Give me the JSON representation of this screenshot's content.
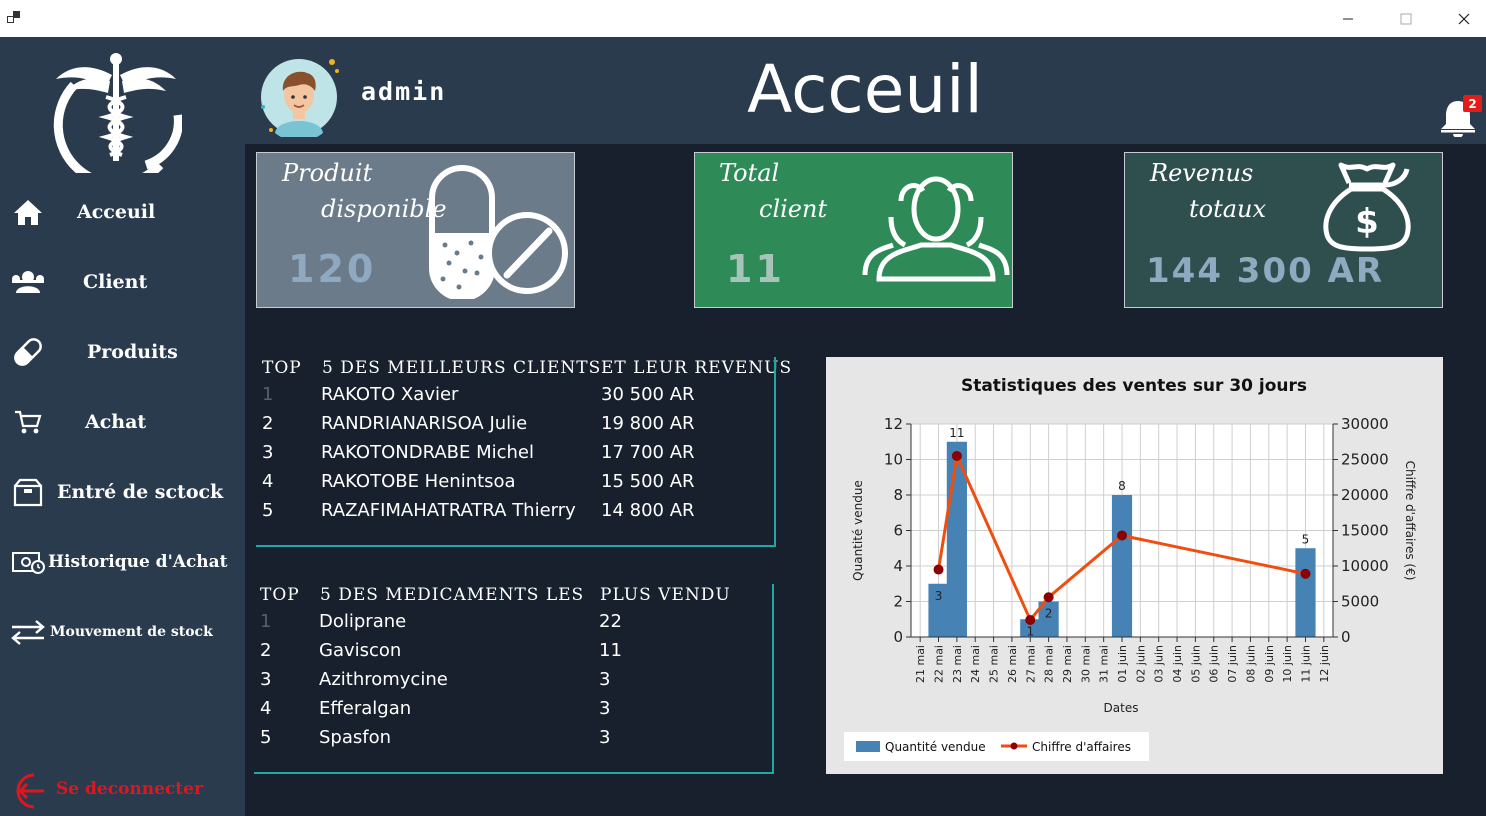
{
  "sidebar": {
    "items": [
      {
        "label": "Acceuil",
        "icon": "home-icon"
      },
      {
        "label": "Client",
        "icon": "users-icon"
      },
      {
        "label": "Produits",
        "icon": "pill-icon"
      },
      {
        "label": "Achat",
        "icon": "cart-icon"
      },
      {
        "label": "Entré de sctock",
        "icon": "stock-box-icon"
      },
      {
        "label": "Historique d'Achat",
        "icon": "history-icon"
      },
      {
        "label": "Mouvement de stock",
        "icon": "transfer-arrows-icon"
      }
    ],
    "logout_label": "Se deconnecter"
  },
  "header": {
    "username": "admin",
    "title": "Acceuil",
    "notification_count": "2"
  },
  "cards": {
    "products": {
      "title1": "Produit",
      "title2": "disponible",
      "value": "120"
    },
    "clients": {
      "title1": "Total",
      "title2": "client",
      "value": "11"
    },
    "revenue": {
      "title1": "Revenus",
      "title2": "totaux",
      "value": "144 300 AR"
    }
  },
  "top_clients": {
    "headers": [
      "TOP",
      "5 DES MEILLEURS CLIENTS",
      "ET LEUR REVENUS"
    ],
    "rows": [
      {
        "rank": "1",
        "name": "RAKOTO Xavier",
        "value": "30 500 AR"
      },
      {
        "rank": "2",
        "name": "RANDRIANARISOA Julie",
        "value": "19 800 AR"
      },
      {
        "rank": "3",
        "name": "RAKOTONDRABE Michel",
        "value": "17 700 AR"
      },
      {
        "rank": "4",
        "name": "RAKOTOBE Henintsoa",
        "value": "15 500 AR"
      },
      {
        "rank": "5",
        "name": "RAZAFIMAHATRATRA Thierry",
        "value": "14 800 AR"
      }
    ]
  },
  "top_meds": {
    "headers": [
      "TOP",
      "5 DES MEDICAMENTS LES",
      "PLUS VENDU"
    ],
    "rows": [
      {
        "rank": "1",
        "name": "Doliprane",
        "value": "22"
      },
      {
        "rank": "2",
        "name": "Gaviscon",
        "value": "11"
      },
      {
        "rank": "3",
        "name": "Azithromycine",
        "value": "3"
      },
      {
        "rank": "4",
        "name": "Efferalgan",
        "value": "3"
      },
      {
        "rank": "5",
        "name": "Spasfon",
        "value": "3"
      }
    ]
  },
  "chart_data": {
    "type": "bar",
    "title": "Statistiques des ventes sur 30 jours",
    "xlabel": "Dates",
    "ylabel": "Quantité vendue",
    "y2label": "Chiffre d'affaires (€)",
    "categories": [
      "21 mai",
      "22 mai",
      "23 mai",
      "24 mai",
      "25 mai",
      "26 mai",
      "27 mai",
      "28 mai",
      "29 mai",
      "30 mai",
      "31 mai",
      "01 juin",
      "02 juin",
      "03 juin",
      "04 juin",
      "05 juin",
      "06 juin",
      "07 juin",
      "08 juin",
      "09 juin",
      "10 juin",
      "11 juin",
      "12 juin"
    ],
    "ylim": [
      0,
      12
    ],
    "yticks": [
      0,
      2,
      4,
      6,
      8,
      10,
      12
    ],
    "y2lim": [
      0,
      30000
    ],
    "y2ticks": [
      0,
      5000,
      10000,
      15000,
      20000,
      25000,
      30000
    ],
    "grid": true,
    "legend_position": "bottom-left",
    "series": [
      {
        "name": "Quantité vendue",
        "type": "bar",
        "axis": "left",
        "color": "#4682b4",
        "points": [
          {
            "x": "22 mai",
            "y": 3
          },
          {
            "x": "23 mai",
            "y": 11
          },
          {
            "x": "27 mai",
            "y": 1
          },
          {
            "x": "28 mai",
            "y": 2
          },
          {
            "x": "01 juin",
            "y": 8
          },
          {
            "x": "11 juin",
            "y": 5
          }
        ]
      },
      {
        "name": "Chiffre d'affaires",
        "type": "line",
        "axis": "right",
        "color": "#f04e0f",
        "marker_color": "#8b0000",
        "points": [
          {
            "x": "22 mai",
            "y": 9500
          },
          {
            "x": "23 mai",
            "y": 25500
          },
          {
            "x": "27 mai",
            "y": 2400
          },
          {
            "x": "28 mai",
            "y": 5600
          },
          {
            "x": "01 juin",
            "y": 14300
          },
          {
            "x": "11 juin",
            "y": 8900
          }
        ]
      }
    ]
  }
}
